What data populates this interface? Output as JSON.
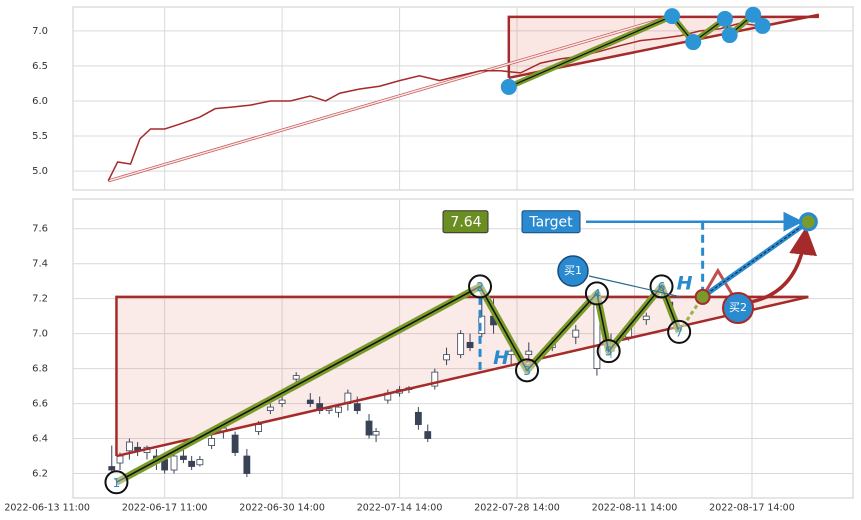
{
  "chart_data": [
    {
      "type": "line",
      "x": [
        5.2,
        6.0,
        7.1,
        7.9,
        8.8,
        10.0,
        11.3,
        13.0,
        14.3,
        15.6,
        17.3,
        19.0,
        20.7,
        22.4,
        23.7,
        24.9,
        26.6,
        28.3,
        30.0,
        31.7,
        33.4,
        35.1,
        36.9,
        38.6,
        40.3,
        42.0,
        43.7,
        45.4,
        47.1,
        48.8,
        50.5,
        52.2,
        53.9,
        55.6,
        57.3,
        59.0,
        60.7
      ],
      "values": [
        4.86,
        5.13,
        5.1,
        5.46,
        5.6,
        5.6,
        5.67,
        5.77,
        5.89,
        5.91,
        5.94,
        6.0,
        6.0,
        6.07,
        6.0,
        6.11,
        6.17,
        6.21,
        6.29,
        6.36,
        6.29,
        6.36,
        6.43,
        6.43,
        6.4,
        6.54,
        6.6,
        6.64,
        6.71,
        6.79,
        6.86,
        6.89,
        6.93,
        7.0,
        7.03,
        7.11,
        7.07
      ],
      "color": "#a52a2a",
      "ylim": [
        4.73,
        7.34
      ],
      "yticks": [
        {
          "value": 5,
          "label": "5.0"
        },
        5.5,
        {
          "value": 6,
          "label": "6.0"
        },
        6.5,
        {
          "value": 7,
          "label": "7.0"
        }
      ],
      "xlim": [
        2.2,
        68.6
      ],
      "projection": {
        "x": [
          5.2,
          53.2
        ],
        "y": [
          4.86,
          7.21
        ]
      },
      "resistance": {
        "x": [
          39.3,
          65.7
        ],
        "y": 7.2
      },
      "support": {
        "x": [
          39.3,
          65.7
        ],
        "y": [
          6.33,
          7.23
        ]
      },
      "pattern_points": {
        "x": [
          39.3,
          53.2,
          55.0,
          57.7,
          58.1,
          60.1,
          60.9
        ],
        "y": [
          6.2,
          7.21,
          6.84,
          7.17,
          6.94,
          7.23,
          7.07
        ]
      },
      "grid": true
    },
    {
      "type": "candlestick",
      "x": [
        5.5,
        6.2,
        7.0,
        7.7,
        8.5,
        9.3,
        10.0,
        10.8,
        11.6,
        12.3,
        13.0,
        14.0,
        15.0,
        16.0,
        17.0,
        18.0,
        19.0,
        20.0,
        21.2,
        22.4,
        23.2,
        24.0,
        24.8,
        25.6,
        26.4,
        27.4,
        28.0,
        29.0,
        30.0,
        30.8,
        31.6,
        32.4,
        33.0,
        34.0,
        35.2,
        36.0,
        37.0,
        38.0,
        39.5,
        41.0,
        43.0,
        45.0,
        46.8,
        48.0,
        49.5,
        51.0,
        53.0
      ],
      "open": [
        6.24,
        6.26,
        6.33,
        6.35,
        6.32,
        6.3,
        6.28,
        6.22,
        6.3,
        6.27,
        6.25,
        6.36,
        6.44,
        6.42,
        6.3,
        6.44,
        6.56,
        6.6,
        6.74,
        6.62,
        6.6,
        6.56,
        6.55,
        6.6,
        6.6,
        6.5,
        6.42,
        6.62,
        6.66,
        6.68,
        6.55,
        6.44,
        6.7,
        6.85,
        6.88,
        6.95,
        7.0,
        7.1,
        6.88,
        6.88,
        6.92,
        6.98,
        6.8,
        6.9,
        6.98,
        7.08,
        7.18
      ],
      "high": [
        6.36,
        6.32,
        6.4,
        6.38,
        6.36,
        6.34,
        6.32,
        6.32,
        6.36,
        6.3,
        6.3,
        6.42,
        6.48,
        6.44,
        6.34,
        6.5,
        6.6,
        6.64,
        6.78,
        6.66,
        6.64,
        6.58,
        6.6,
        6.68,
        6.64,
        6.54,
        6.46,
        6.68,
        6.7,
        6.7,
        6.58,
        6.48,
        6.8,
        6.92,
        7.02,
        7.0,
        7.22,
        7.2,
        6.95,
        6.95,
        6.98,
        7.05,
        7.2,
        7.0,
        7.05,
        7.12,
        7.2
      ],
      "low": [
        6.2,
        6.22,
        6.28,
        6.3,
        6.28,
        6.22,
        6.2,
        6.2,
        6.26,
        6.22,
        6.24,
        6.34,
        6.4,
        6.3,
        6.18,
        6.42,
        6.54,
        6.58,
        6.72,
        6.58,
        6.54,
        6.54,
        6.52,
        6.56,
        6.54,
        6.4,
        6.38,
        6.6,
        6.64,
        6.66,
        6.45,
        6.38,
        6.68,
        6.82,
        6.86,
        6.9,
        6.98,
        7.0,
        6.82,
        6.84,
        6.9,
        6.94,
        6.76,
        6.86,
        6.96,
        7.05,
        7.1
      ],
      "close": [
        6.22,
        6.3,
        6.38,
        6.33,
        6.35,
        6.26,
        6.22,
        6.3,
        6.28,
        6.24,
        6.28,
        6.4,
        6.46,
        6.32,
        6.2,
        6.48,
        6.58,
        6.62,
        6.76,
        6.6,
        6.56,
        6.57,
        6.58,
        6.66,
        6.56,
        6.42,
        6.44,
        6.66,
        6.68,
        6.69,
        6.48,
        6.4,
        6.78,
        6.88,
        7.0,
        6.92,
        7.1,
        7.05,
        6.9,
        6.9,
        6.95,
        7.02,
        7.18,
        6.96,
        7.03,
        7.1,
        7.15
      ],
      "ylim": [
        6.06,
        7.77
      ],
      "yticks": [
        {
          "value": 6.2,
          "label": "6.2"
        },
        {
          "value": 6.4,
          "label": "6.4"
        },
        {
          "value": 6.6,
          "label": "6.6"
        },
        {
          "value": 6.8,
          "label": "6.8"
        },
        {
          "value": 7,
          "label": "7.0"
        },
        {
          "value": 7.2,
          "label": "7.2"
        },
        {
          "value": 7.4,
          "label": "7.4"
        },
        {
          "value": 7.6,
          "label": "7.6"
        }
      ],
      "xlim": [
        2.2,
        68.6
      ],
      "xticks": [
        {
          "value": 0,
          "label": "2022-06-13 11:00"
        },
        {
          "value": 10,
          "label": "2022-06-17 11:00"
        },
        {
          "value": 20,
          "label": "2022-06-30 14:00"
        },
        {
          "value": 30,
          "label": "2022-07-14 14:00"
        },
        {
          "value": 40,
          "label": "2022-07-28 14:00"
        },
        {
          "value": 50,
          "label": "2022-08-11 14:00"
        },
        {
          "value": 60,
          "label": "2022-08-17 14:00"
        }
      ],
      "resistance": {
        "x": [
          5.9,
          64.8
        ],
        "y": 7.21
      },
      "support": {
        "x": [
          5.9,
          64.8
        ],
        "y": [
          6.3,
          7.21
        ]
      },
      "pattern_points": {
        "labels": [
          "1",
          "2",
          "3",
          "4",
          "5",
          "6",
          "7"
        ],
        "x": [
          5.9,
          36.85,
          40.85,
          46.8,
          47.8,
          52.3,
          53.8
        ],
        "y": [
          6.15,
          7.27,
          6.79,
          7.23,
          6.9,
          7.27,
          7.01
        ]
      },
      "breakout": {
        "x": 55.8,
        "y": 7.21
      },
      "projection": {
        "x": [
          55.8,
          57.1,
          58.8
        ],
        "y": [
          7.21,
          7.36,
          7.17
        ]
      },
      "target": {
        "label": "Target",
        "x": 64.8,
        "y": 7.64
      },
      "height_marker": [
        "H",
        "H"
      ],
      "buy_labels": [
        "买1",
        "买2"
      ],
      "grid": true
    }
  ]
}
